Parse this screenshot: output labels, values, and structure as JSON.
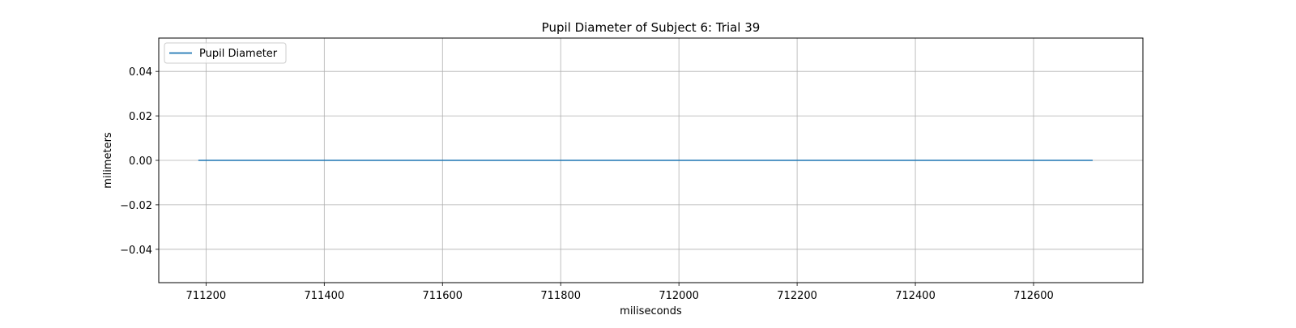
{
  "chart_data": {
    "type": "line",
    "title": "Pupil Diameter of Subject 6: Trial 39",
    "xlabel": "miliseconds",
    "ylabel": "milimeters",
    "xlim": [
      711120,
      712785
    ],
    "ylim": [
      -0.055,
      0.055
    ],
    "x_ticks": [
      711200,
      711400,
      711600,
      711800,
      712000,
      712200,
      712400,
      712600
    ],
    "y_ticks": [
      0.04,
      0.02,
      0.0,
      -0.02,
      -0.04
    ],
    "x_tick_labels": [
      "711200",
      "711400",
      "711600",
      "711800",
      "712000",
      "712200",
      "712400",
      "712600"
    ],
    "y_tick_labels": [
      "0.04",
      "0.02",
      "0.00",
      "−0.02",
      "−0.04"
    ],
    "grid": true,
    "legend_position": "upper-left",
    "series": [
      {
        "name": "Pupil Diameter",
        "color": "#1f77b4",
        "x": [
          711187,
          712700
        ],
        "y": [
          0.0,
          0.0
        ]
      }
    ]
  }
}
